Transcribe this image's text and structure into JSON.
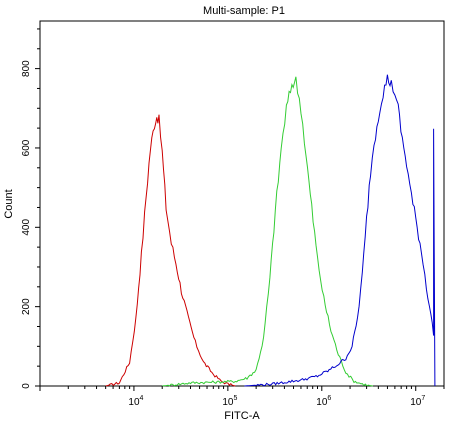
{
  "chart_data": {
    "type": "line",
    "title": "Multi-sample: P1",
    "xlabel": "FITC-A",
    "ylabel": "Count",
    "x_scale": "log",
    "x_ticks": [
      {
        "value": 10000,
        "base": "10",
        "exp": "4"
      },
      {
        "value": 100000,
        "base": "10",
        "exp": "5"
      },
      {
        "value": 1000000,
        "base": "10",
        "exp": "6"
      },
      {
        "value": 10000000,
        "base": "10",
        "exp": "7"
      }
    ],
    "y_ticks": [
      0,
      200,
      400,
      600,
      800
    ],
    "xlim": [
      1000,
      20000000
    ],
    "ylim": [
      0,
      920
    ],
    "grid": false,
    "legend": "none",
    "series": [
      {
        "color": "#cc0000",
        "x": [
          5000,
          7000,
          9000,
          10500,
          12000,
          13500,
          15000,
          16500,
          17500,
          18500,
          20000,
          22000,
          25000,
          28000,
          32000,
          38000,
          45000,
          55000,
          70000,
          85000,
          100000,
          120000
        ],
        "y": [
          0,
          8,
          60,
          170,
          330,
          480,
          600,
          660,
          680,
          670,
          590,
          450,
          360,
          310,
          240,
          170,
          110,
          60,
          30,
          12,
          5,
          0
        ]
      },
      {
        "color": "#33cc33",
        "x": [
          20000,
          40000,
          80000,
          120000,
          160000,
          200000,
          240000,
          280000,
          320000,
          370000,
          420000,
          480000,
          530000,
          600000,
          680000,
          780000,
          900000,
          1050000,
          1250000,
          1500000,
          1800000,
          2200000,
          2800000,
          3500000
        ],
        "y": [
          0,
          8,
          10,
          12,
          20,
          40,
          120,
          270,
          440,
          600,
          700,
          760,
          770,
          700,
          580,
          450,
          320,
          220,
          140,
          80,
          35,
          12,
          4,
          0
        ]
      },
      {
        "color": "#0000cc",
        "x": [
          150000,
          300000,
          600000,
          900000,
          1200000,
          1500000,
          1800000,
          2100000,
          2400000,
          2700000,
          3000000,
          3300000,
          3600000,
          4000000,
          4500000,
          5000000,
          5500000,
          6000000,
          6500000,
          7200000,
          8000000,
          9000000,
          10000000,
          11500000,
          13000000,
          14500000,
          15500000,
          15500000,
          16000000
        ],
        "y": [
          0,
          5,
          15,
          25,
          40,
          55,
          70,
          100,
          170,
          280,
          420,
          540,
          610,
          680,
          740,
          775,
          760,
          740,
          700,
          620,
          560,
          480,
          420,
          340,
          250,
          180,
          130,
          640,
          0
        ]
      }
    ]
  }
}
